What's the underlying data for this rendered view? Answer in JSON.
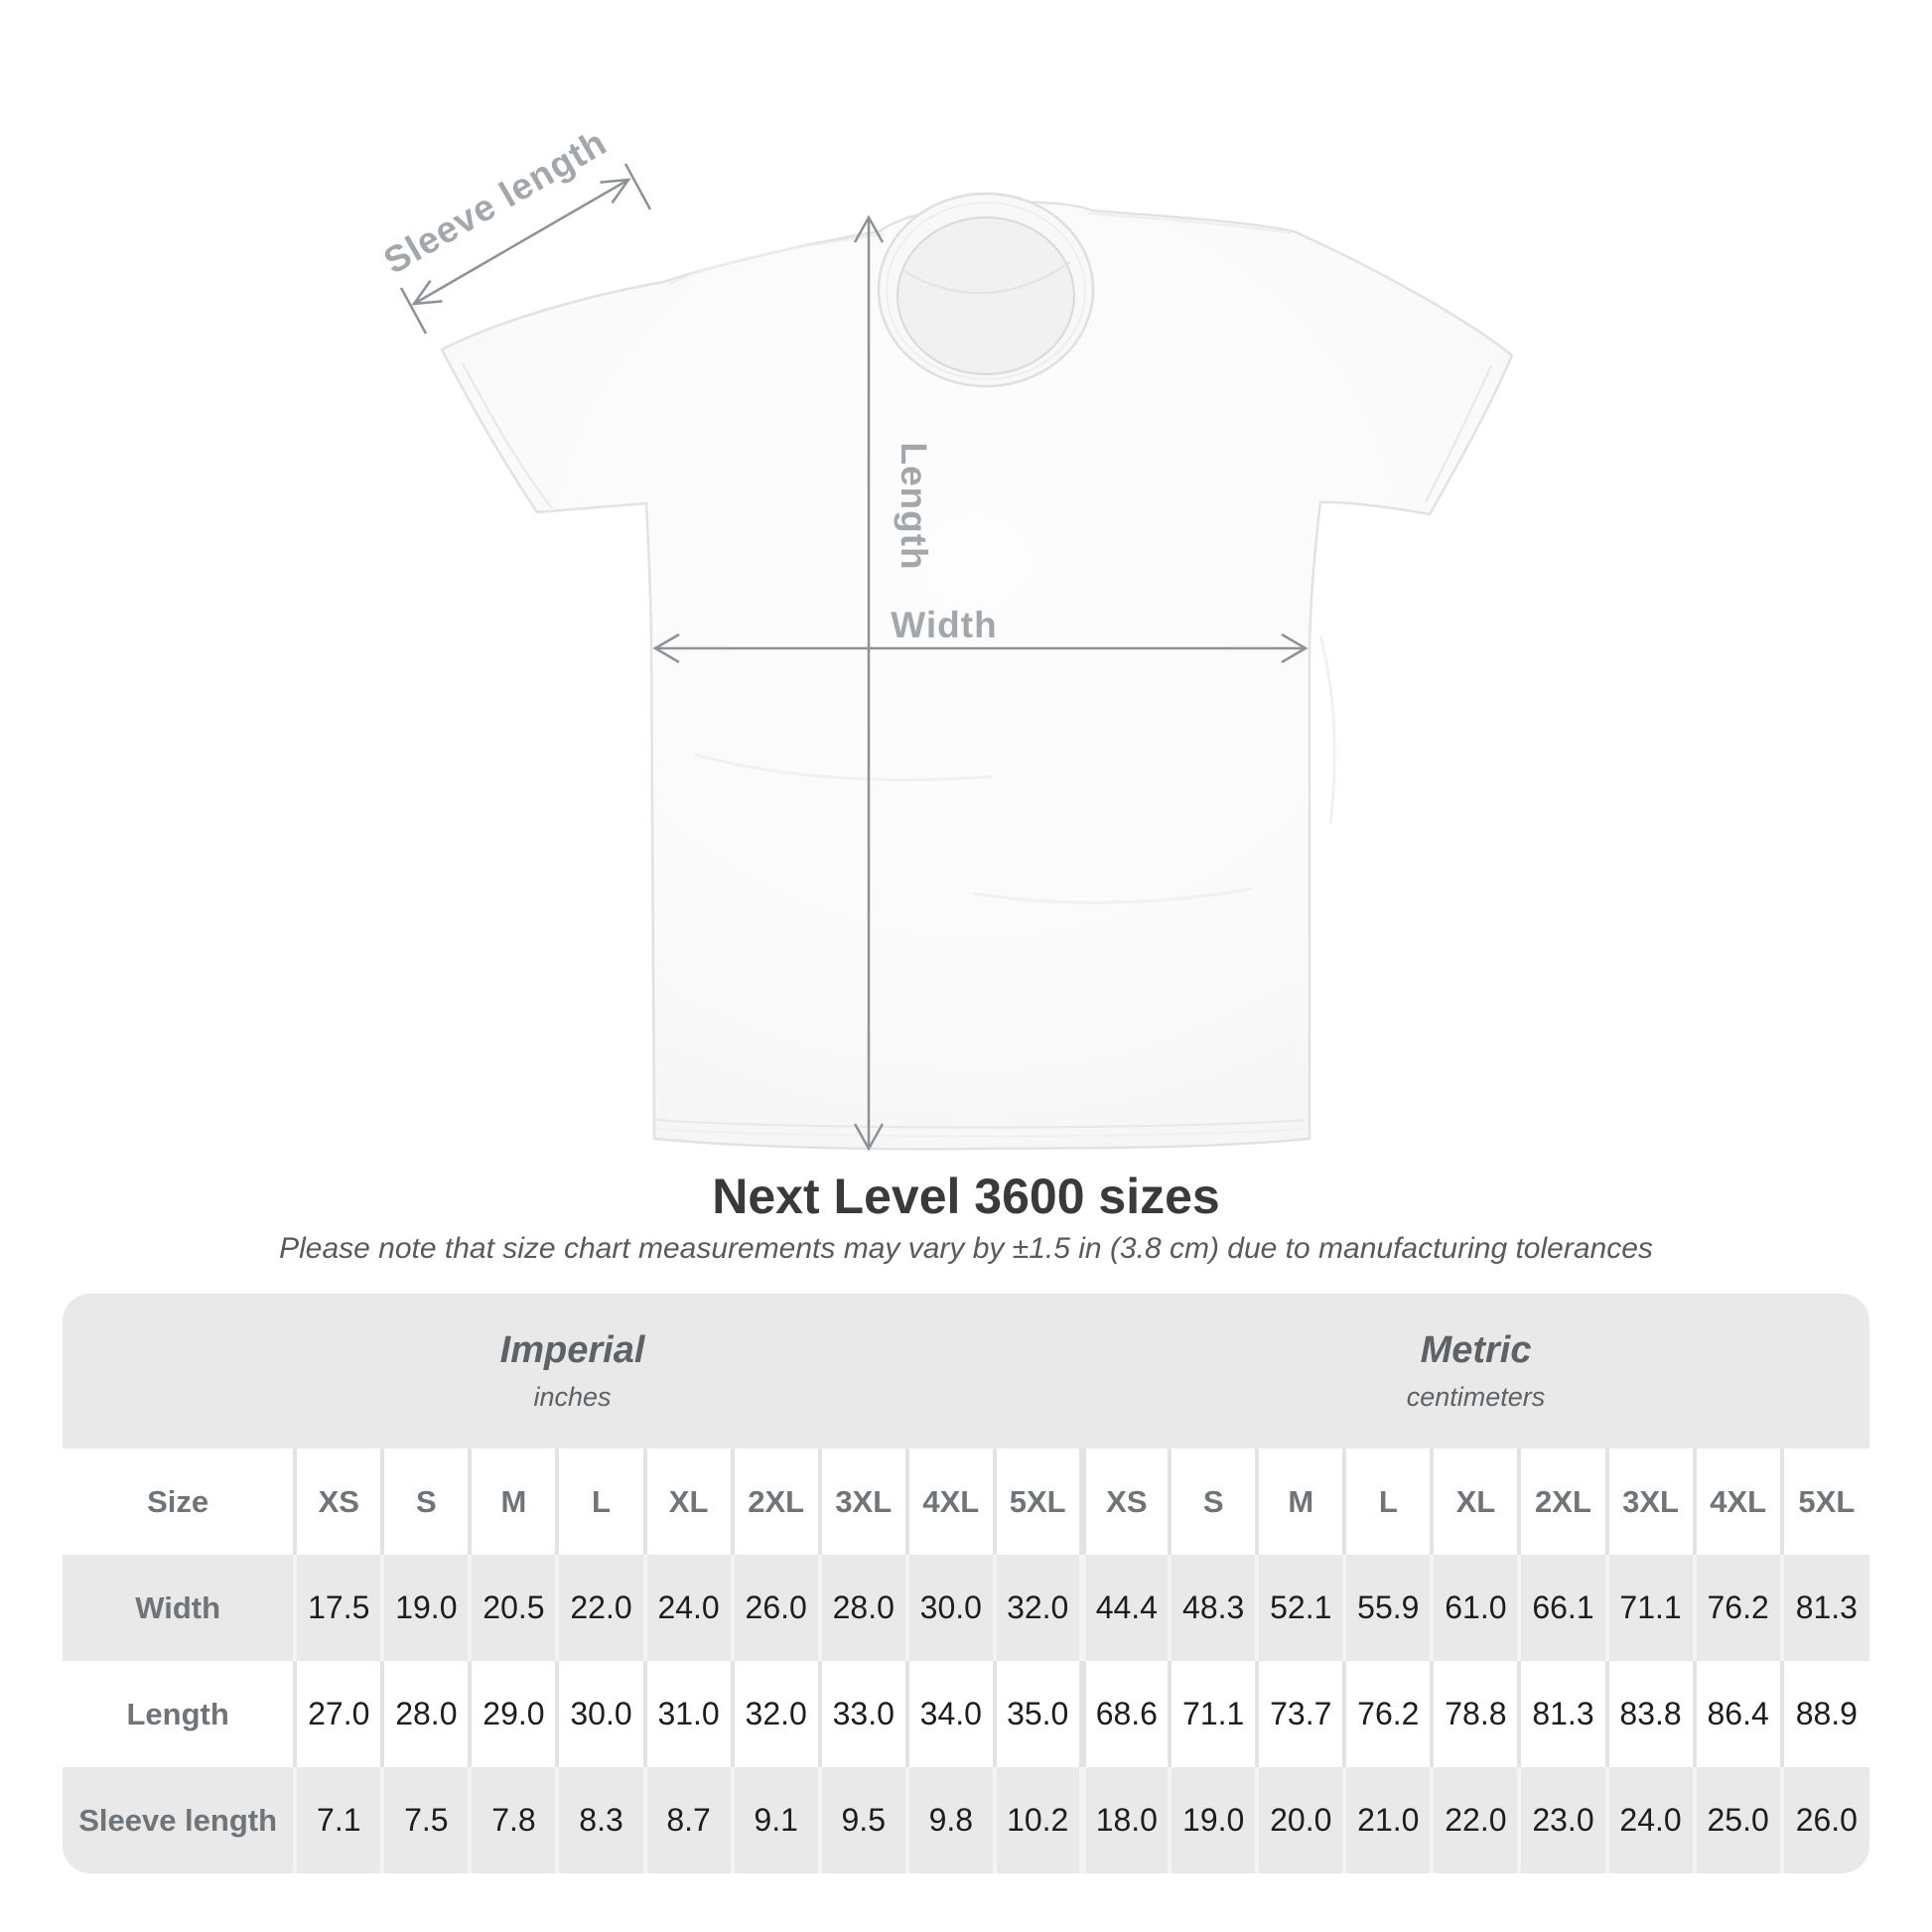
{
  "diagram": {
    "sleeve_label": "Sleeve length",
    "length_label": "Length",
    "width_label": "Width"
  },
  "title": "Next Level 3600 sizes",
  "subtitle": "Please note that size chart measurements may vary by ±1.5 in (3.8 cm) due to manufacturing tolerances",
  "table": {
    "size_header": "Size",
    "unit_groups": [
      {
        "label": "Imperial",
        "sublabel": "inches"
      },
      {
        "label": "Metric",
        "sublabel": "centimeters"
      }
    ],
    "sizes": [
      "XS",
      "S",
      "M",
      "L",
      "XL",
      "2XL",
      "3XL",
      "4XL",
      "5XL"
    ],
    "rows": [
      {
        "label": "Width",
        "imperial": [
          "17.5",
          "19.0",
          "20.5",
          "22.0",
          "24.0",
          "26.0",
          "28.0",
          "30.0",
          "32.0"
        ],
        "metric": [
          "44.4",
          "48.3",
          "52.1",
          "55.9",
          "61.0",
          "66.1",
          "71.1",
          "76.2",
          "81.3"
        ]
      },
      {
        "label": "Length",
        "imperial": [
          "27.0",
          "28.0",
          "29.0",
          "30.0",
          "31.0",
          "32.0",
          "33.0",
          "34.0",
          "35.0"
        ],
        "metric": [
          "68.6",
          "71.1",
          "73.7",
          "76.2",
          "78.8",
          "81.3",
          "83.8",
          "86.4",
          "88.9"
        ]
      },
      {
        "label": "Sleeve length",
        "imperial": [
          "7.1",
          "7.5",
          "7.8",
          "8.3",
          "8.7",
          "9.1",
          "9.5",
          "9.8",
          "10.2"
        ],
        "metric": [
          "18.0",
          "19.0",
          "20.0",
          "21.0",
          "22.0",
          "23.0",
          "24.0",
          "25.0",
          "26.0"
        ]
      }
    ]
  },
  "colors": {
    "panel_bg": "#e9e9e9",
    "header_text": "#6e7478",
    "value_text": "#1d1d1d",
    "unit_text": "#5d6266",
    "dimension_line": "#8d9296",
    "dimension_label": "#a2a7ab",
    "title_text": "#3a3a3a"
  }
}
